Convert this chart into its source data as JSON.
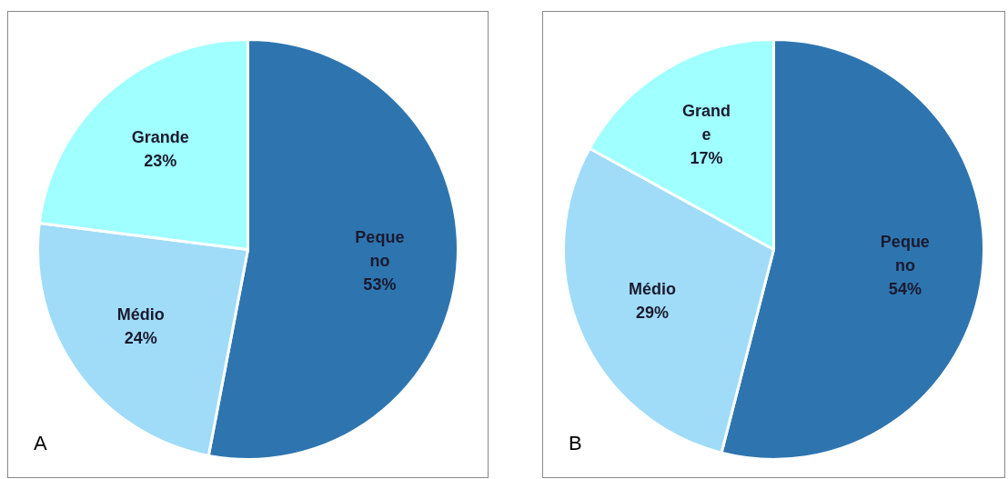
{
  "chart_data": [
    {
      "type": "pie",
      "title": "A",
      "categories": [
        "Peque\nno",
        "Médio",
        "Grande"
      ],
      "values": [
        53,
        24,
        23
      ],
      "value_labels": [
        "53%",
        "24%",
        "23%"
      ],
      "colors": [
        "#2e75b0",
        "#a0dcf8",
        "#a0ffff"
      ],
      "legend": false
    },
    {
      "type": "pie",
      "title": "B",
      "categories": [
        "Peque\nno",
        "Médio",
        "Grand\ne"
      ],
      "values": [
        54,
        29,
        17
      ],
      "value_labels": [
        "54%",
        "29%",
        "17%"
      ],
      "colors": [
        "#2e75b0",
        "#a0dcf8",
        "#a0ffff"
      ],
      "legend": false
    }
  ]
}
